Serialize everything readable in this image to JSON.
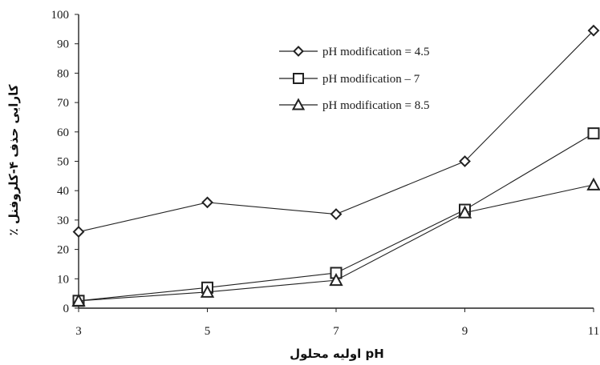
{
  "chart_data": {
    "type": "line",
    "x": [
      3,
      5,
      7,
      9,
      11
    ],
    "xlim": [
      3,
      11
    ],
    "ylim": [
      0,
      100
    ],
    "x_ticks": [
      "3",
      "5",
      "7",
      "9",
      "11"
    ],
    "y_ticks": [
      "0",
      "10",
      "20",
      "30",
      "40",
      "50",
      "60",
      "70",
      "80",
      "90",
      "100"
    ],
    "xlabel": "pH اولیه محلول",
    "ylabel": "کارایی حذف ۴-کلروفنل ٪",
    "grid": false,
    "legend_position": "top-center",
    "series": [
      {
        "name": "pH modification = 4.5",
        "marker": "diamond",
        "values": [
          26,
          36,
          32,
          50,
          94.5
        ]
      },
      {
        "name": "pH modification – 7",
        "marker": "square",
        "values": [
          2.5,
          7,
          12,
          33.5,
          59.5
        ]
      },
      {
        "name": "pH modification = 8.5",
        "marker": "triangle",
        "values": [
          2.5,
          5.5,
          9.5,
          32.5,
          42
        ]
      }
    ],
    "colors": {
      "line": "#222222",
      "marker_fill": "#ffffff"
    }
  }
}
